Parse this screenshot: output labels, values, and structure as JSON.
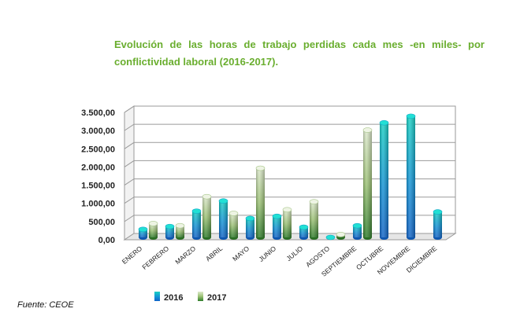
{
  "title": "Evolución de las horas de trabajo perdidas cada mes -en miles- por conflictividad laboral (2016-2017).",
  "source": "Fuente: CEOE",
  "chart_data": {
    "type": "bar",
    "title": "Evolución de las horas de trabajo perdidas cada mes -en miles- por conflictividad laboral (2016-2017).",
    "categories": [
      "ENERO",
      "FEBRERO",
      "MARZO",
      "ABRIL",
      "MAYO",
      "JUNIO",
      "JULIO",
      "AGOSTO",
      "SEPTIEMBRE",
      "OCTUBRE",
      "NOVIEMBRE",
      "DICIEMBRE"
    ],
    "series": [
      {
        "name": "2016",
        "values": [
          220,
          300,
          720,
          1000,
          520,
          580,
          280,
          0,
          320,
          3150,
          3330,
          700
        ],
        "color": "#12a4d9"
      },
      {
        "name": "2017",
        "values": [
          380,
          320,
          1120,
          660,
          1900,
          760,
          980,
          80,
          2950,
          null,
          null,
          null
        ],
        "color": "#7aa84a"
      }
    ],
    "ylim": [
      0,
      3500
    ],
    "yticks": [
      "0,00",
      "500,00",
      "1.000,00",
      "1.500,00",
      "2.000,00",
      "2.500,00",
      "3.000,00",
      "3.500,00"
    ],
    "grid": true,
    "legend_position": "bottom",
    "style": "3d-cylinder"
  }
}
